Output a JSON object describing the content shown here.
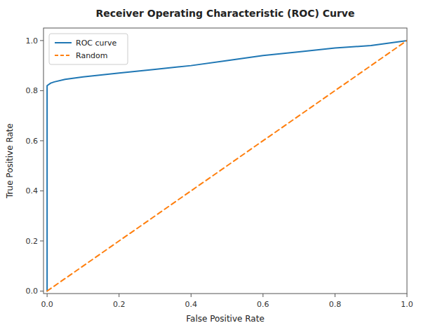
{
  "chart_data": {
    "type": "line",
    "title": "Receiver Operating Characteristic (ROC) Curve",
    "xlabel": "False Positive Rate",
    "ylabel": "True Positive Rate",
    "series": [
      {
        "name": "ROC curve",
        "color": "#1f77b4",
        "line_style": "solid",
        "x": [
          0.0,
          0.0,
          0.01,
          0.02,
          0.05,
          0.1,
          0.2,
          0.3,
          0.4,
          0.5,
          0.6,
          0.7,
          0.8,
          0.9,
          0.95,
          1.0
        ],
        "values": [
          0.0,
          0.82,
          0.83,
          0.835,
          0.845,
          0.855,
          0.87,
          0.885,
          0.9,
          0.92,
          0.94,
          0.955,
          0.97,
          0.98,
          0.99,
          1.0
        ]
      },
      {
        "name": "Random",
        "color": "#ff7f0e",
        "line_style": "dashed",
        "x": [
          0,
          1
        ],
        "values": [
          0,
          1
        ]
      }
    ],
    "xlim": [
      -0.01,
      1.0
    ],
    "ylim": [
      -0.01,
      1.05
    ],
    "xticks": [
      {
        "value": 0,
        "label": "0.0"
      },
      0.2,
      0.4,
      0.6,
      0.8,
      {
        "value": 1,
        "label": "1.0"
      }
    ],
    "yticks": [
      {
        "value": 0,
        "label": "0.0"
      },
      0.2,
      0.4,
      0.6,
      0.8,
      {
        "value": 1,
        "label": "1.0"
      }
    ],
    "legend": "upper left",
    "grid": false
  }
}
